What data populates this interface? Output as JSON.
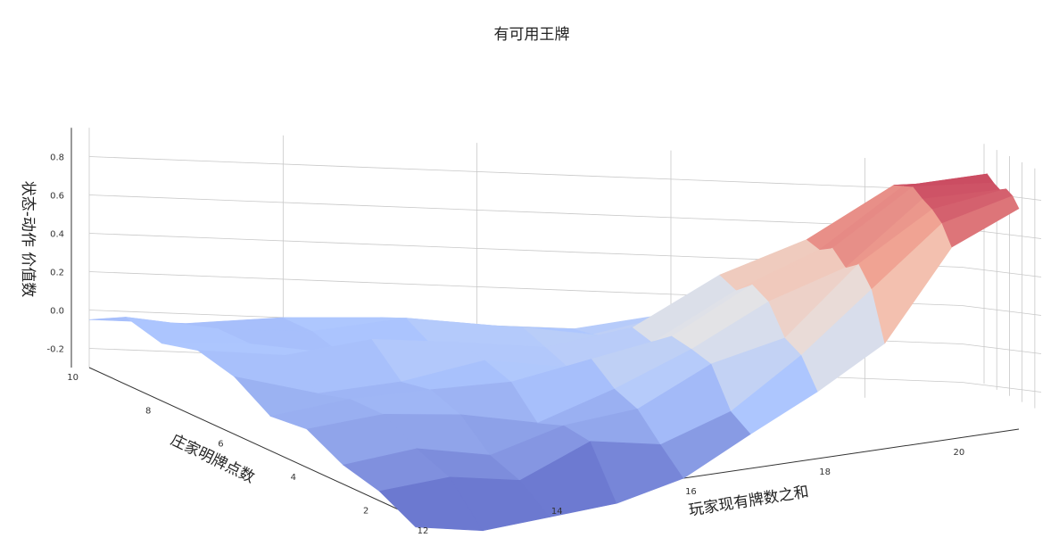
{
  "chart_data": {
    "type": "surface",
    "title": "有可用王牌",
    "xlabel": "玩家现有牌数之和",
    "ylabel": "庄家明牌点数",
    "zlabel": "状态-动作 价值数",
    "x_ticks": [
      "12",
      "14",
      "16",
      "18",
      "20"
    ],
    "y_ticks": [
      "2",
      "4",
      "6",
      "8",
      "10"
    ],
    "z_ticks": [
      "-0.2",
      "0.0",
      "0.2",
      "0.4",
      "0.6",
      "0.8"
    ],
    "x": [
      12,
      13,
      14,
      15,
      16,
      17,
      18,
      19,
      20,
      21
    ],
    "y": [
      1,
      2,
      3,
      4,
      5,
      6,
      7,
      8,
      9,
      10
    ],
    "zlim": [
      -0.3,
      0.95
    ],
    "colormap": "coolwarm",
    "grid": true,
    "z_values": [
      [
        -0.35,
        -0.42,
        -0.4,
        -0.38,
        -0.3,
        -0.12,
        0.05,
        0.25,
        0.7,
        0.85
      ],
      [
        -0.25,
        -0.22,
        -0.28,
        -0.12,
        -0.18,
        -0.05,
        0.2,
        0.5,
        0.8,
        0.9
      ],
      [
        -0.2,
        -0.15,
        -0.22,
        -0.1,
        -0.05,
        0.15,
        0.25,
        0.6,
        0.85,
        0.92
      ],
      [
        -0.1,
        -0.05,
        -0.08,
        -0.15,
        0.0,
        0.18,
        0.4,
        0.55,
        0.88,
        0.9
      ],
      [
        -0.12,
        -0.05,
        -0.02,
        0.0,
        0.1,
        0.2,
        0.45,
        0.62,
        0.92,
        0.92
      ],
      [
        0.0,
        -0.1,
        -0.05,
        0.05,
        0.0,
        0.12,
        0.38,
        0.58,
        0.9,
        0.95
      ],
      [
        0.05,
        0.02,
        0.1,
        0.08,
        0.05,
        0.15,
        0.42,
        0.6,
        0.88,
        0.9
      ],
      [
        0.0,
        0.0,
        -0.05,
        0.0,
        0.1,
        0.05,
        0.22,
        0.45,
        0.8,
        0.85
      ],
      [
        0.05,
        0.0,
        0.0,
        0.08,
        0.05,
        0.02,
        0.15,
        0.35,
        0.7,
        0.8
      ],
      [
        -0.05,
        -0.05,
        0.0,
        0.02,
        0.0,
        0.0,
        0.1,
        0.3,
        0.6,
        0.75
      ]
    ]
  }
}
